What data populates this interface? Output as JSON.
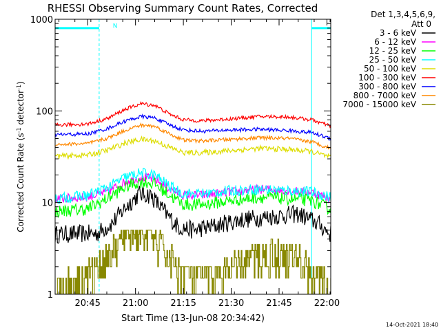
{
  "chart_data": {
    "type": "line",
    "title": "RHESSI Observing Summary Count Rates, Corrected",
    "xlabel": "Start Time (13-Jun-08 20:34:42)",
    "ylabel_main": "Corrected Count Rate (s",
    "ylabel_sup1": "-1",
    "ylabel_mid": " detector",
    "ylabel_sup2": "-1",
    "ylabel_end": ")",
    "ylabel": "Corrected Count Rate (s-1 detector-1)",
    "y_scale": "log",
    "ylim": [
      1,
      1000
    ],
    "xlim_minutes": [
      20.58,
      22.02
    ],
    "x_tick_labels": [
      "20:45",
      "21:00",
      "21:15",
      "21:30",
      "21:45",
      "22:00"
    ],
    "x_tick_hours": [
      20.75,
      21.0,
      21.25,
      21.5,
      21.75,
      22.0
    ],
    "y_tick_labels": [
      "1",
      "10",
      "100",
      "1000"
    ],
    "y_tick_values": [
      1,
      10,
      100,
      1000
    ],
    "legend_header": [
      "Det 1,3,4,5,6,9,",
      "Att 0"
    ],
    "legend_position": "right",
    "annotations": [
      {
        "text": "N",
        "hour": 20.86,
        "value": 850,
        "color": "#00ffff"
      }
    ],
    "saa_night_bars": [
      {
        "start": 20.58,
        "end": 20.81,
        "value": 800
      },
      {
        "start": 21.92,
        "end": 22.02,
        "value": 800
      }
    ],
    "vertical_lines": [
      {
        "hour": 20.58,
        "style": "solid",
        "color": "#00ffff"
      },
      {
        "hour": 20.81,
        "style": "dashed",
        "color": "#00ffff"
      },
      {
        "hour": 21.92,
        "style": "solid",
        "color": "#00ffff"
      },
      {
        "hour": 22.02,
        "style": "dashed",
        "color": "#00ffff"
      }
    ],
    "series": [
      {
        "name": "3 - 6 keV",
        "color": "#000000",
        "noise": 0.1,
        "points": [
          [
            20.58,
            4.5
          ],
          [
            20.8,
            4.6
          ],
          [
            20.88,
            6
          ],
          [
            20.95,
            9
          ],
          [
            21.02,
            12.5
          ],
          [
            21.08,
            12
          ],
          [
            21.15,
            8
          ],
          [
            21.22,
            5.5
          ],
          [
            21.3,
            5
          ],
          [
            21.4,
            5.5
          ],
          [
            21.55,
            6.5
          ],
          [
            21.7,
            7
          ],
          [
            21.85,
            7.5
          ],
          [
            21.95,
            6
          ],
          [
            22.02,
            4.5
          ]
        ]
      },
      {
        "name": "6 - 12 keV",
        "color": "#ff00ff",
        "noise": 0.05,
        "points": [
          [
            20.58,
            11
          ],
          [
            20.75,
            11.5
          ],
          [
            20.85,
            13
          ],
          [
            20.95,
            17
          ],
          [
            21.03,
            19
          ],
          [
            21.1,
            18
          ],
          [
            21.18,
            14
          ],
          [
            21.25,
            12
          ],
          [
            21.35,
            12
          ],
          [
            21.5,
            13
          ],
          [
            21.65,
            14
          ],
          [
            21.8,
            13.5
          ],
          [
            21.92,
            13
          ],
          [
            22.02,
            11
          ]
        ]
      },
      {
        "name": "12 - 25 keV",
        "color": "#00ff00",
        "noise": 0.07,
        "points": [
          [
            20.58,
            8
          ],
          [
            20.75,
            8.5
          ],
          [
            20.85,
            11
          ],
          [
            20.95,
            15
          ],
          [
            21.03,
            17
          ],
          [
            21.1,
            16
          ],
          [
            21.18,
            12
          ],
          [
            21.25,
            9.5
          ],
          [
            21.35,
            9.5
          ],
          [
            21.5,
            10.5
          ],
          [
            21.65,
            11.5
          ],
          [
            21.8,
            11
          ],
          [
            21.92,
            10.5
          ],
          [
            22.02,
            8.5
          ]
        ]
      },
      {
        "name": "25 - 50 keV",
        "color": "#00ffff",
        "noise": 0.06,
        "points": [
          [
            20.58,
            11
          ],
          [
            20.75,
            12
          ],
          [
            20.85,
            14.5
          ],
          [
            20.95,
            19
          ],
          [
            21.03,
            21
          ],
          [
            21.1,
            20
          ],
          [
            21.18,
            15
          ],
          [
            21.25,
            12.5
          ],
          [
            21.35,
            12.5
          ],
          [
            21.5,
            13.5
          ],
          [
            21.65,
            14
          ],
          [
            21.8,
            13.5
          ],
          [
            21.92,
            13
          ],
          [
            22.02,
            11.5
          ]
        ]
      },
      {
        "name": "50 - 100 keV",
        "color": "#dddd00",
        "noise": 0.03,
        "points": [
          [
            20.58,
            32
          ],
          [
            20.75,
            33
          ],
          [
            20.85,
            37
          ],
          [
            20.95,
            45
          ],
          [
            21.03,
            49
          ],
          [
            21.1,
            47
          ],
          [
            21.18,
            40
          ],
          [
            21.25,
            35
          ],
          [
            21.35,
            35
          ],
          [
            21.5,
            37
          ],
          [
            21.65,
            39
          ],
          [
            21.8,
            38
          ],
          [
            21.92,
            36
          ],
          [
            22.02,
            31
          ]
        ]
      },
      {
        "name": "100 - 300 keV",
        "color": "#ff0000",
        "noise": 0.02,
        "points": [
          [
            20.58,
            70
          ],
          [
            20.75,
            72
          ],
          [
            20.85,
            82
          ],
          [
            20.95,
            105
          ],
          [
            21.03,
            120
          ],
          [
            21.1,
            115
          ],
          [
            21.18,
            92
          ],
          [
            21.25,
            80
          ],
          [
            21.35,
            78
          ],
          [
            21.5,
            82
          ],
          [
            21.65,
            87
          ],
          [
            21.8,
            86
          ],
          [
            21.92,
            80
          ],
          [
            22.02,
            68
          ]
        ]
      },
      {
        "name": "300 - 800 keV",
        "color": "#0000ff",
        "noise": 0.02,
        "points": [
          [
            20.58,
            55
          ],
          [
            20.75,
            56
          ],
          [
            20.85,
            64
          ],
          [
            20.95,
            78
          ],
          [
            21.03,
            87
          ],
          [
            21.1,
            84
          ],
          [
            21.18,
            70
          ],
          [
            21.25,
            62
          ],
          [
            21.35,
            60
          ],
          [
            21.5,
            62
          ],
          [
            21.65,
            63
          ],
          [
            21.8,
            61
          ],
          [
            21.92,
            58
          ],
          [
            22.02,
            50
          ]
        ]
      },
      {
        "name": "800 - 7000 keV",
        "color": "#ff8800",
        "noise": 0.02,
        "points": [
          [
            20.58,
            43
          ],
          [
            20.75,
            44
          ],
          [
            20.85,
            50
          ],
          [
            20.95,
            62
          ],
          [
            21.03,
            70
          ],
          [
            21.1,
            68
          ],
          [
            21.18,
            56
          ],
          [
            21.25,
            48
          ],
          [
            21.35,
            47
          ],
          [
            21.5,
            49
          ],
          [
            21.65,
            51
          ],
          [
            21.8,
            50
          ],
          [
            21.92,
            46
          ],
          [
            22.02,
            39
          ]
        ]
      },
      {
        "name": "7000 - 15000 keV",
        "color": "#888800",
        "noise": 0,
        "points": [
          [
            20.58,
            1.2
          ],
          [
            20.72,
            1.5
          ],
          [
            20.8,
            2
          ],
          [
            20.88,
            3
          ],
          [
            20.95,
            4.5
          ],
          [
            21.02,
            5
          ],
          [
            21.08,
            4.5
          ],
          [
            21.15,
            3
          ],
          [
            21.22,
            2
          ],
          [
            21.3,
            1.5
          ],
          [
            21.45,
            1.6
          ],
          [
            21.6,
            2.5
          ],
          [
            21.72,
            2.8
          ],
          [
            21.85,
            2.5
          ],
          [
            21.95,
            1.5
          ],
          [
            22.02,
            1.2
          ]
        ]
      }
    ]
  },
  "footer": {
    "timestamp": "14-Oct-2021 18:40"
  }
}
